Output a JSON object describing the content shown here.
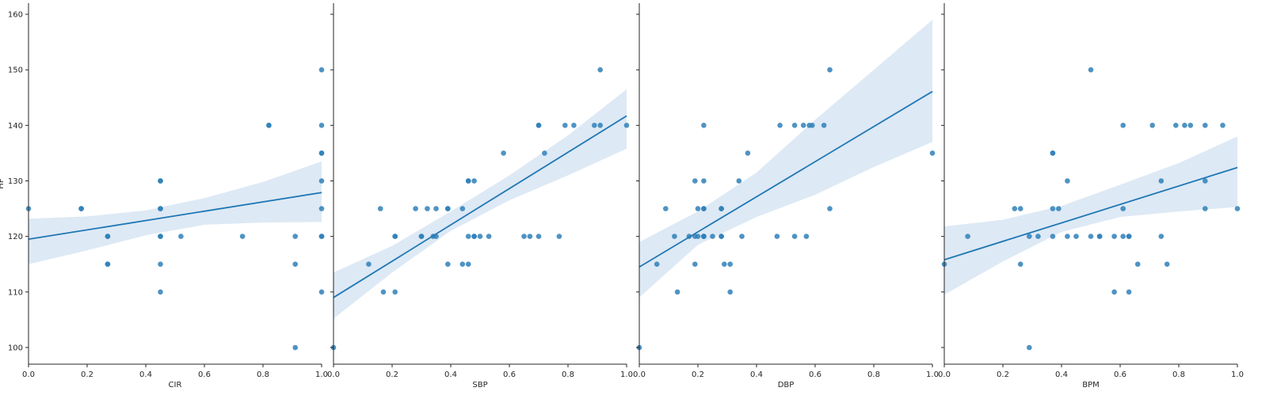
{
  "figure": {
    "ylabel": "HP",
    "ylim": [
      97,
      162
    ],
    "yticks": [
      100,
      110,
      120,
      130,
      140,
      150,
      160
    ],
    "xlim": [
      0,
      1
    ],
    "xticks": [
      0.0,
      0.2,
      0.4,
      0.6,
      0.8,
      1.0
    ],
    "xtick_labels": [
      "0.0",
      "0.2",
      "0.4",
      "0.6",
      "0.8",
      "1.0"
    ]
  },
  "colors": {
    "point": "#2f80b9",
    "line": "#1f77b4",
    "band": "#c6dbef",
    "axis": "#262626"
  },
  "chart_data": [
    {
      "type": "scatter",
      "xlabel": "CIR",
      "ylabel": "HP",
      "regression": {
        "intercept": 119.5,
        "slope": 8.4,
        "ci_lower": [
          115.0,
          117.5,
          120.2,
          122.1,
          122.5,
          122.6
        ],
        "ci_upper": [
          123.2,
          123.6,
          124.7,
          126.9,
          129.8,
          133.5
        ]
      },
      "points": [
        [
          0.0,
          125
        ],
        [
          0.18,
          125
        ],
        [
          0.18,
          125
        ],
        [
          0.27,
          120
        ],
        [
          0.27,
          120
        ],
        [
          0.27,
          115
        ],
        [
          0.27,
          115
        ],
        [
          0.45,
          130
        ],
        [
          0.45,
          130
        ],
        [
          0.45,
          125
        ],
        [
          0.45,
          125
        ],
        [
          0.45,
          120
        ],
        [
          0.45,
          120
        ],
        [
          0.45,
          115
        ],
        [
          0.45,
          110
        ],
        [
          0.52,
          120
        ],
        [
          0.73,
          120
        ],
        [
          0.82,
          140
        ],
        [
          0.82,
          140
        ],
        [
          0.91,
          120
        ],
        [
          0.91,
          115
        ],
        [
          0.91,
          100
        ],
        [
          1.0,
          150
        ],
        [
          1.0,
          140
        ],
        [
          1.0,
          135
        ],
        [
          1.0,
          135
        ],
        [
          1.0,
          130
        ],
        [
          1.0,
          125
        ],
        [
          1.0,
          120
        ],
        [
          1.0,
          120
        ],
        [
          1.0,
          110
        ]
      ]
    },
    {
      "type": "scatter",
      "xlabel": "SBP",
      "ylabel": "",
      "regression": {
        "intercept": 109.0,
        "slope": 32.7,
        "ci_lower": [
          105.2,
          113.5,
          121.0,
          126.5,
          131.0,
          135.8
        ],
        "ci_upper": [
          113.5,
          118.3,
          124.5,
          131.0,
          138.2,
          146.5
        ]
      },
      "points": [
        [
          0.0,
          100
        ],
        [
          0.12,
          115
        ],
        [
          0.16,
          125
        ],
        [
          0.17,
          110
        ],
        [
          0.21,
          120
        ],
        [
          0.21,
          120
        ],
        [
          0.21,
          110
        ],
        [
          0.28,
          125
        ],
        [
          0.3,
          120
        ],
        [
          0.3,
          120
        ],
        [
          0.32,
          125
        ],
        [
          0.34,
          120
        ],
        [
          0.35,
          125
        ],
        [
          0.35,
          120
        ],
        [
          0.39,
          125
        ],
        [
          0.39,
          125
        ],
        [
          0.39,
          115
        ],
        [
          0.44,
          125
        ],
        [
          0.44,
          115
        ],
        [
          0.46,
          130
        ],
        [
          0.46,
          130
        ],
        [
          0.46,
          120
        ],
        [
          0.46,
          115
        ],
        [
          0.48,
          130
        ],
        [
          0.48,
          120
        ],
        [
          0.48,
          120
        ],
        [
          0.5,
          120
        ],
        [
          0.53,
          120
        ],
        [
          0.58,
          135
        ],
        [
          0.65,
          120
        ],
        [
          0.67,
          120
        ],
        [
          0.7,
          140
        ],
        [
          0.7,
          140
        ],
        [
          0.7,
          120
        ],
        [
          0.72,
          135
        ],
        [
          0.77,
          120
        ],
        [
          0.79,
          140
        ],
        [
          0.82,
          140
        ],
        [
          0.89,
          140
        ],
        [
          0.91,
          150
        ],
        [
          0.91,
          140
        ],
        [
          1.0,
          140
        ]
      ]
    },
    {
      "type": "scatter",
      "xlabel": "DBP",
      "ylabel": "",
      "regression": {
        "intercept": 114.5,
        "slope": 31.6,
        "ci_lower": [
          109.0,
          118.5,
          123.5,
          127.5,
          132.5,
          137.0
        ],
        "ci_upper": [
          119.0,
          124.5,
          131.5,
          141.0,
          150.0,
          159.0
        ]
      },
      "points": [
        [
          0.0,
          100
        ],
        [
          0.06,
          115
        ],
        [
          0.09,
          125
        ],
        [
          0.12,
          120
        ],
        [
          0.13,
          110
        ],
        [
          0.17,
          120
        ],
        [
          0.19,
          130
        ],
        [
          0.19,
          120
        ],
        [
          0.19,
          115
        ],
        [
          0.2,
          125
        ],
        [
          0.2,
          120
        ],
        [
          0.22,
          140
        ],
        [
          0.22,
          130
        ],
        [
          0.22,
          125
        ],
        [
          0.22,
          125
        ],
        [
          0.22,
          120
        ],
        [
          0.22,
          120
        ],
        [
          0.22,
          120
        ],
        [
          0.25,
          120
        ],
        [
          0.28,
          125
        ],
        [
          0.28,
          125
        ],
        [
          0.28,
          120
        ],
        [
          0.28,
          120
        ],
        [
          0.29,
          115
        ],
        [
          0.31,
          115
        ],
        [
          0.31,
          110
        ],
        [
          0.34,
          130
        ],
        [
          0.35,
          120
        ],
        [
          0.37,
          135
        ],
        [
          0.47,
          120
        ],
        [
          0.48,
          140
        ],
        [
          0.53,
          140
        ],
        [
          0.53,
          120
        ],
        [
          0.56,
          140
        ],
        [
          0.57,
          120
        ],
        [
          0.58,
          140
        ],
        [
          0.59,
          140
        ],
        [
          0.63,
          140
        ],
        [
          0.65,
          150
        ],
        [
          0.65,
          125
        ],
        [
          1.0,
          135
        ]
      ]
    },
    {
      "type": "scatter",
      "xlabel": "BPM",
      "ylabel": "",
      "regression": {
        "intercept": 115.8,
        "slope": 16.6,
        "ci_lower": [
          109.5,
          115.5,
          120.8,
          123.5,
          124.5,
          125.3
        ],
        "ci_upper": [
          121.8,
          123.0,
          125.5,
          129.3,
          133.2,
          138.0
        ]
      },
      "points": [
        [
          0.0,
          115
        ],
        [
          0.08,
          120
        ],
        [
          0.24,
          125
        ],
        [
          0.26,
          125
        ],
        [
          0.26,
          115
        ],
        [
          0.29,
          120
        ],
        [
          0.29,
          100
        ],
        [
          0.32,
          120
        ],
        [
          0.37,
          135
        ],
        [
          0.37,
          135
        ],
        [
          0.37,
          125
        ],
        [
          0.37,
          120
        ],
        [
          0.39,
          125
        ],
        [
          0.42,
          130
        ],
        [
          0.42,
          120
        ],
        [
          0.45,
          120
        ],
        [
          0.5,
          150
        ],
        [
          0.5,
          120
        ],
        [
          0.53,
          120
        ],
        [
          0.53,
          120
        ],
        [
          0.58,
          120
        ],
        [
          0.58,
          110
        ],
        [
          0.61,
          140
        ],
        [
          0.61,
          125
        ],
        [
          0.61,
          120
        ],
        [
          0.63,
          120
        ],
        [
          0.63,
          120
        ],
        [
          0.63,
          110
        ],
        [
          0.66,
          115
        ],
        [
          0.71,
          140
        ],
        [
          0.74,
          130
        ],
        [
          0.74,
          120
        ],
        [
          0.76,
          115
        ],
        [
          0.79,
          140
        ],
        [
          0.82,
          140
        ],
        [
          0.84,
          140
        ],
        [
          0.89,
          140
        ],
        [
          0.89,
          130
        ],
        [
          0.89,
          125
        ],
        [
          0.95,
          140
        ],
        [
          1.0,
          125
        ]
      ]
    }
  ]
}
